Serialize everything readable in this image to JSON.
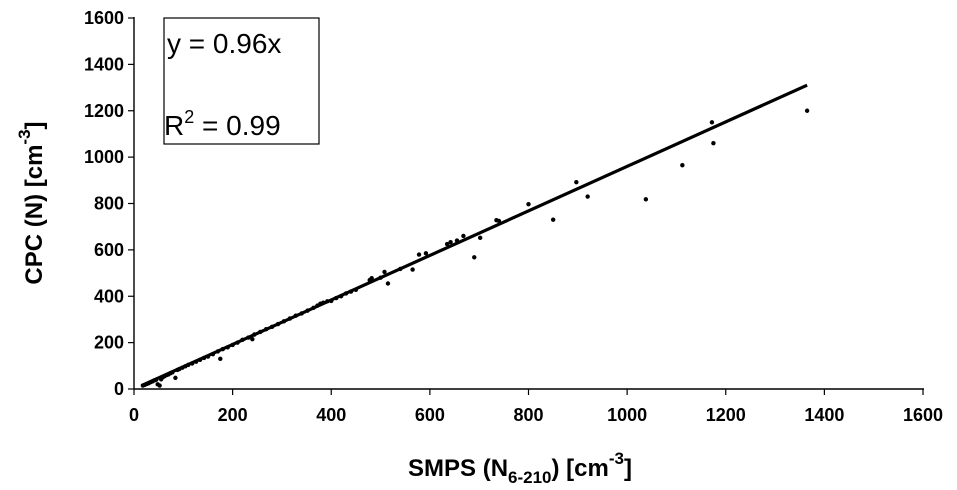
{
  "chart_data": {
    "type": "scatter",
    "xlabel": "SMPS (N6-210) [cm-3]",
    "xlabel_parts": {
      "main": "SMPS (N",
      "sub": "6-210",
      "mid": ") [cm",
      "sup": "-3",
      "end": "]"
    },
    "ylabel": "CPC (N) [cm-3]",
    "ylabel_parts": {
      "main": "CPC (N)  [cm",
      "sup": "-3",
      "end": "]"
    },
    "xlim": [
      0,
      1600
    ],
    "ylim": [
      0,
      1600
    ],
    "xticks": [
      0,
      200,
      400,
      600,
      800,
      1000,
      1200,
      1400,
      1600
    ],
    "yticks": [
      0,
      200,
      400,
      600,
      800,
      1000,
      1200,
      1400,
      1600
    ],
    "xtick_labels": [
      "0",
      "200",
      "400",
      "600",
      "800",
      "1000",
      "1200",
      "1400",
      "1600"
    ],
    "ytick_labels": [
      "0",
      "200",
      "400",
      "600",
      "800",
      "1000",
      "1200",
      "1400",
      "1600"
    ],
    "grid": false,
    "legend": "none",
    "annotation": {
      "equation": "y = 0.96x",
      "r2_prefix": "R",
      "r2_sup": "2",
      "r2_value": " = 0.99"
    },
    "fit_line": {
      "slope": 0.96,
      "x_range": [
        15,
        1365
      ]
    },
    "points": [
      [
        18,
        15
      ],
      [
        22,
        18
      ],
      [
        26,
        22
      ],
      [
        30,
        25
      ],
      [
        34,
        30
      ],
      [
        38,
        33
      ],
      [
        42,
        38
      ],
      [
        45,
        40
      ],
      [
        48,
        20
      ],
      [
        52,
        15
      ],
      [
        55,
        42
      ],
      [
        58,
        50
      ],
      [
        62,
        55
      ],
      [
        66,
        60
      ],
      [
        70,
        63
      ],
      [
        74,
        68
      ],
      [
        78,
        72
      ],
      [
        84,
        48
      ],
      [
        88,
        82
      ],
      [
        92,
        86
      ],
      [
        98,
        92
      ],
      [
        104,
        98
      ],
      [
        110,
        104
      ],
      [
        118,
        110
      ],
      [
        126,
        118
      ],
      [
        134,
        126
      ],
      [
        142,
        134
      ],
      [
        150,
        140
      ],
      [
        160,
        150
      ],
      [
        170,
        162
      ],
      [
        175,
        130
      ],
      [
        180,
        172
      ],
      [
        190,
        180
      ],
      [
        200,
        190
      ],
      [
        210,
        200
      ],
      [
        220,
        212
      ],
      [
        232,
        222
      ],
      [
        240,
        215
      ],
      [
        244,
        235
      ],
      [
        256,
        246
      ],
      [
        268,
        258
      ],
      [
        280,
        268
      ],
      [
        292,
        280
      ],
      [
        304,
        292
      ],
      [
        316,
        304
      ],
      [
        328,
        316
      ],
      [
        340,
        326
      ],
      [
        352,
        338
      ],
      [
        364,
        350
      ],
      [
        372,
        360
      ],
      [
        378,
        368
      ],
      [
        384,
        372
      ],
      [
        392,
        378
      ],
      [
        400,
        380
      ],
      [
        410,
        392
      ],
      [
        420,
        400
      ],
      [
        430,
        412
      ],
      [
        440,
        420
      ],
      [
        450,
        428
      ],
      [
        478,
        470
      ],
      [
        482,
        478
      ],
      [
        500,
        480
      ],
      [
        508,
        505
      ],
      [
        515,
        455
      ],
      [
        540,
        518
      ],
      [
        565,
        515
      ],
      [
        578,
        580
      ],
      [
        592,
        585
      ],
      [
        635,
        625
      ],
      [
        642,
        633
      ],
      [
        655,
        640
      ],
      [
        668,
        660
      ],
      [
        690,
        568
      ],
      [
        702,
        652
      ],
      [
        735,
        728
      ],
      [
        740,
        725
      ],
      [
        800,
        797
      ],
      [
        850,
        730
      ],
      [
        897,
        892
      ],
      [
        920,
        830
      ],
      [
        1038,
        818
      ],
      [
        1112,
        965
      ],
      [
        1172,
        1150
      ],
      [
        1175,
        1060
      ],
      [
        1365,
        1200
      ]
    ]
  }
}
